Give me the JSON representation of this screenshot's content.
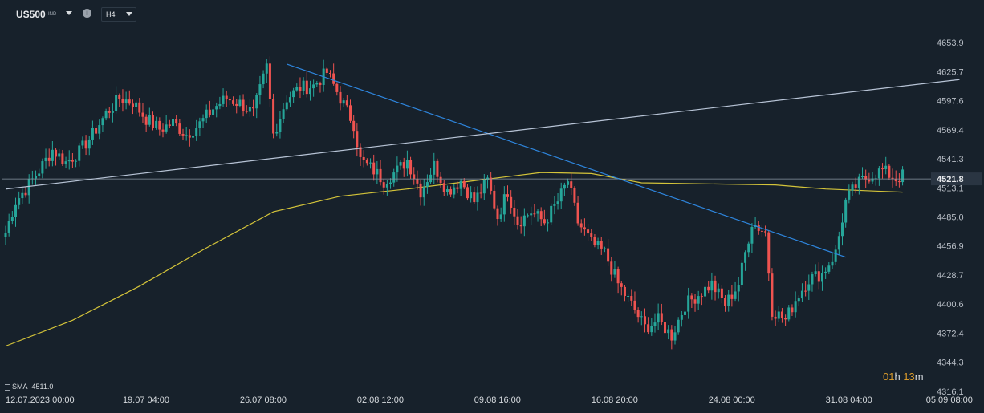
{
  "toolbar": {
    "symbol": "US500",
    "symbol_type": "IND",
    "timeframe": "H4",
    "info_glyph": "i"
  },
  "indicator": {
    "label": "SMA",
    "value": "4511.0"
  },
  "countdown": {
    "hours": "01",
    "hours_unit": "h",
    "minutes": "13",
    "minutes_unit": "m"
  },
  "colors": {
    "bg": "#17212b",
    "up": "#26a69a",
    "down": "#ef5350",
    "sma": "#d4c43a",
    "trend_down": "#2e86de",
    "trend_up": "#b8c4d6",
    "current_line": "#8a96a3"
  },
  "chart_data": {
    "type": "candlestick",
    "title": "",
    "ylim": [
      4316.1,
      4653.9
    ],
    "y_ticks": [
      "4653.9",
      "4625.7",
      "4597.6",
      "4569.4",
      "4541.3",
      "4513.1",
      "4485.0",
      "4456.9",
      "4428.7",
      "4400.6",
      "4372.4",
      "4344.3",
      "4316.1"
    ],
    "current_price": "4521.8",
    "x_ticks": [
      {
        "label": "12.07.2023  00:00",
        "bar": 0
      },
      {
        "label": "19.07  04:00",
        "bar": 35
      },
      {
        "label": "26.07  08:00",
        "bar": 70
      },
      {
        "label": "02.08  12:00",
        "bar": 105
      },
      {
        "label": "09.08  16:00",
        "bar": 140
      },
      {
        "label": "16.08  20:00",
        "bar": 175
      },
      {
        "label": "24.08  00:00",
        "bar": 210
      },
      {
        "label": "31.08  04:00",
        "bar": 245
      },
      {
        "label": "05.09  08:00",
        "bar": 275
      }
    ],
    "waypoints": [
      [
        0,
        4470
      ],
      [
        3,
        4500
      ],
      [
        6,
        4512
      ],
      [
        10,
        4530
      ],
      [
        14,
        4550
      ],
      [
        18,
        4538
      ],
      [
        22,
        4548
      ],
      [
        26,
        4565
      ],
      [
        30,
        4585
      ],
      [
        34,
        4600
      ],
      [
        38,
        4596
      ],
      [
        42,
        4580
      ],
      [
        46,
        4570
      ],
      [
        50,
        4576
      ],
      [
        54,
        4565
      ],
      [
        58,
        4575
      ],
      [
        62,
        4590
      ],
      [
        66,
        4600
      ],
      [
        70,
        4595
      ],
      [
        74,
        4585
      ],
      [
        78,
        4630
      ],
      [
        80,
        4565
      ],
      [
        84,
        4600
      ],
      [
        88,
        4610
      ],
      [
        92,
        4612
      ],
      [
        96,
        4625
      ],
      [
        100,
        4600
      ],
      [
        104,
        4575
      ],
      [
        106,
        4540
      ],
      [
        110,
        4530
      ],
      [
        113,
        4520
      ],
      [
        117,
        4530
      ],
      [
        120,
        4540
      ],
      [
        124,
        4510
      ],
      [
        128,
        4535
      ],
      [
        132,
        4510
      ],
      [
        136,
        4520
      ],
      [
        140,
        4500
      ],
      [
        144,
        4520
      ],
      [
        147,
        4485
      ],
      [
        150,
        4510
      ],
      [
        153,
        4480
      ],
      [
        157,
        4490
      ],
      [
        161,
        4480
      ],
      [
        165,
        4500
      ],
      [
        168,
        4520
      ],
      [
        171,
        4480
      ],
      [
        175,
        4460
      ],
      [
        179,
        4450
      ],
      [
        183,
        4420
      ],
      [
        187,
        4400
      ],
      [
        191,
        4378
      ],
      [
        195,
        4385
      ],
      [
        199,
        4370
      ],
      [
        203,
        4400
      ],
      [
        207,
        4410
      ],
      [
        211,
        4420
      ],
      [
        215,
        4400
      ],
      [
        219,
        4420
      ],
      [
        223,
        4480
      ],
      [
        227,
        4470
      ],
      [
        229,
        4395
      ],
      [
        233,
        4385
      ],
      [
        236,
        4405
      ],
      [
        240,
        4425
      ],
      [
        244,
        4430
      ],
      [
        248,
        4450
      ],
      [
        251,
        4500
      ],
      [
        254,
        4515
      ],
      [
        258,
        4525
      ],
      [
        262,
        4530
      ],
      [
        266,
        4522
      ],
      [
        268,
        4525
      ]
    ],
    "sma_period": 100,
    "trendlines": [
      {
        "name": "descending",
        "x1": 84,
        "y1": 4633,
        "x2": 251,
        "y2": 4446
      },
      {
        "name": "ascending",
        "x1": 0,
        "y1": 4512,
        "x2": 285,
        "y2": 4618
      }
    ]
  }
}
